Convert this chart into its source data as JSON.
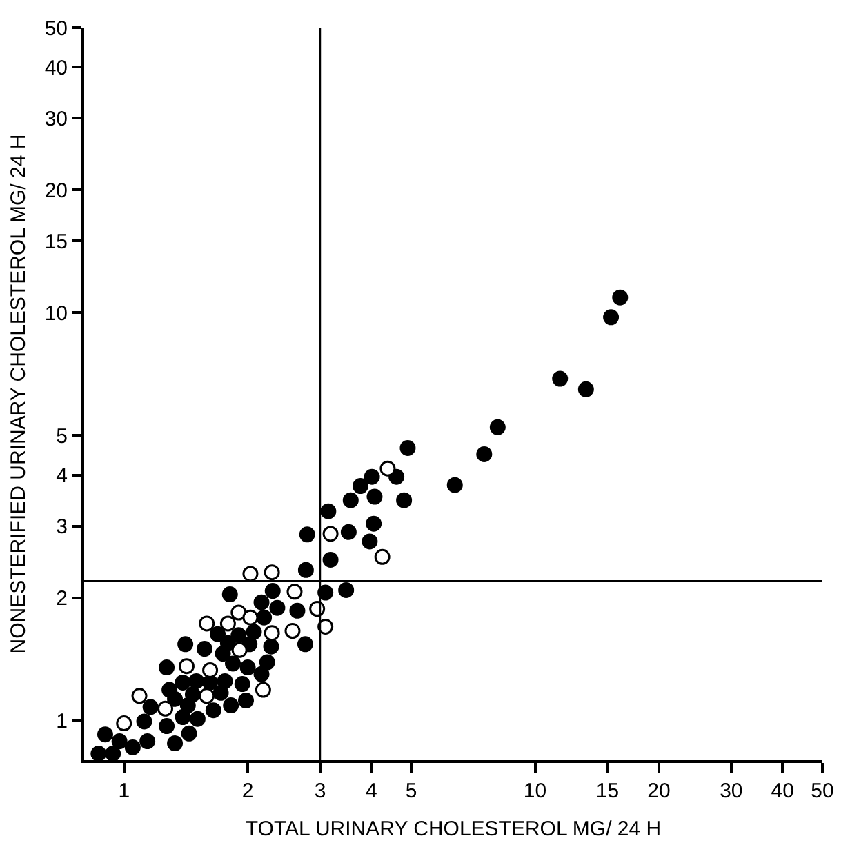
{
  "chart_data": {
    "type": "scatter",
    "xlabel": "TOTAL URINARY CHOLESTEROL MG/ 24 H",
    "ylabel": "NONESTERIFIED URINARY CHOLESTEROL MG/ 24 H",
    "log": "xy",
    "marker": "circle",
    "xlim": [
      0.8,
      50
    ],
    "ylim": [
      0.8,
      50
    ],
    "xticks": [
      1,
      2,
      3,
      4,
      5,
      10,
      15,
      20,
      30,
      40,
      50
    ],
    "yticks": [
      1,
      2,
      3,
      4,
      5,
      10,
      15,
      20,
      30,
      40,
      50
    ],
    "ref_lines": [
      {
        "axis": "x",
        "value": 3,
        "label": null,
        "color": "#000000"
      },
      {
        "axis": "y",
        "value": 2.2,
        "label": null,
        "color": "#000000"
      }
    ],
    "series": [
      {
        "color": "#000000",
        "x": [
          0.867,
          0.94,
          0.9,
          0.975,
          1.05,
          1.14,
          1.12,
          1.16,
          1.27,
          1.33,
          1.27,
          1.29,
          1.33,
          1.39,
          1.39,
          1.44,
          1.41,
          1.43,
          1.47,
          1.5,
          1.51,
          1.57,
          1.62,
          1.65,
          1.69,
          1.72,
          1.74,
          1.76,
          1.79,
          1.81,
          1.82,
          1.84,
          1.9,
          1.94,
          1.98,
          2.0,
          2.02,
          2.07,
          2.16,
          2.19,
          2.16,
          2.23,
          2.28,
          2.3,
          2.36,
          2.64,
          2.76,
          2.77,
          2.79,
          3.09,
          3.18,
          3.14,
          3.47,
          3.52,
          3.56,
          3.76,
          3.96,
          4.05,
          4.01,
          4.07,
          4.6,
          4.8,
          4.9,
          6.38,
          7.52,
          8.11,
          11.5,
          13.3,
          15.3,
          16.1
        ],
        "values": [
          0.83,
          0.83,
          0.925,
          0.89,
          0.86,
          0.89,
          0.995,
          1.08,
          0.97,
          0.88,
          1.35,
          1.19,
          1.13,
          1.24,
          1.02,
          0.93,
          1.54,
          1.09,
          1.16,
          1.25,
          1.01,
          1.5,
          1.24,
          1.06,
          1.63,
          1.17,
          1.46,
          1.25,
          1.55,
          2.04,
          1.09,
          1.38,
          1.62,
          1.23,
          1.12,
          1.35,
          1.54,
          1.65,
          1.95,
          1.79,
          1.3,
          1.39,
          1.52,
          2.08,
          1.89,
          1.86,
          1.54,
          2.34,
          2.86,
          2.06,
          2.48,
          3.26,
          2.09,
          2.9,
          3.47,
          3.76,
          2.75,
          3.04,
          3.96,
          3.54,
          3.96,
          3.47,
          4.66,
          3.78,
          4.5,
          5.24,
          6.89,
          6.49,
          9.75,
          10.9
        ]
      },
      {
        "color": "#ffffff",
        "x": [
          1.0,
          1.09,
          1.26,
          1.42,
          1.59,
          1.62,
          1.59,
          1.79,
          1.9,
          1.91,
          2.03,
          2.03,
          2.18,
          2.29,
          2.29,
          2.57,
          2.6,
          2.95,
          3.09,
          3.18,
          4.25,
          4.38
        ],
        "values": [
          0.985,
          1.15,
          1.07,
          1.36,
          1.15,
          1.33,
          1.73,
          1.73,
          1.84,
          1.49,
          1.79,
          2.29,
          1.19,
          1.64,
          2.31,
          1.66,
          2.07,
          1.88,
          1.7,
          2.87,
          2.52,
          4.15
        ]
      }
    ]
  }
}
